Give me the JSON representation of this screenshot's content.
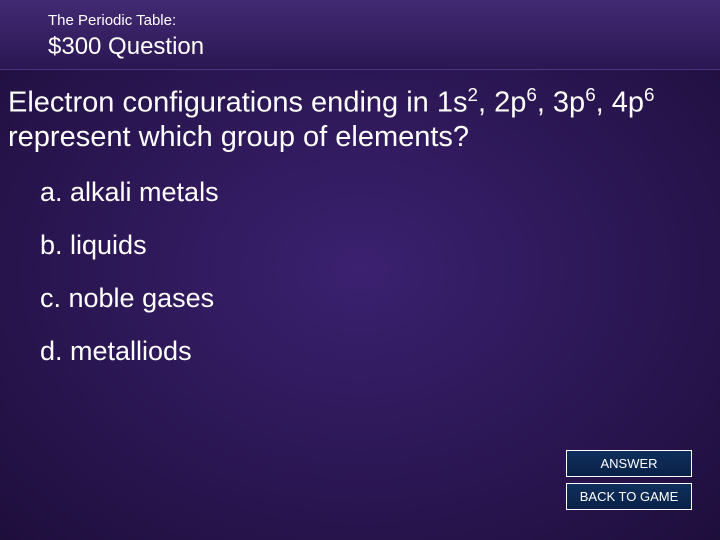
{
  "colors": {
    "body_bg_center": "#3b2170",
    "body_bg_edge": "#1e0e3c",
    "header_bg_top": "#432a74",
    "header_bg_bottom": "#2a1752",
    "header_border": "#4b3480",
    "text": "#ffffff",
    "button_bg_top": "#0f2f5c",
    "button_bg_bottom": "#0a2148",
    "button_border": "#ffffff"
  },
  "typography": {
    "category_fontsize": 15,
    "value_fontsize": 24,
    "question_fontsize": 29,
    "option_fontsize": 27,
    "button_fontsize": 13,
    "font_family": "Arial"
  },
  "header": {
    "category": "The Periodic Table:",
    "value": "$300 Question"
  },
  "question": {
    "parts": [
      {
        "t": "Electron configurations ending in 1s"
      },
      {
        "sup": "2"
      },
      {
        "t": ", 2p"
      },
      {
        "sup": "6"
      },
      {
        "t": ", 3p"
      },
      {
        "sup": "6"
      },
      {
        "t": ", 4p"
      },
      {
        "sup": "6"
      },
      {
        "t": " represent which group of elements?"
      }
    ]
  },
  "options": [
    {
      "label": "a. alkali metals"
    },
    {
      "label": "b. liquids"
    },
    {
      "label": "c. noble gases"
    },
    {
      "label": "d. metalliods"
    }
  ],
  "buttons": {
    "answer": "ANSWER",
    "back": "BACK TO GAME"
  }
}
